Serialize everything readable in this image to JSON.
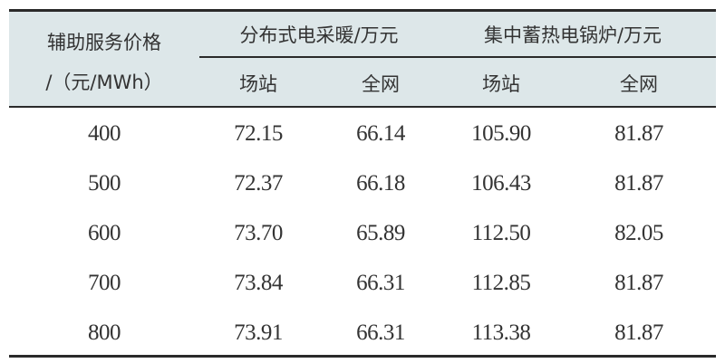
{
  "table": {
    "row_header_line1": "辅助服务价格",
    "row_header_line2": "/（元/MWh）",
    "groups": [
      {
        "label": "分布式电采暖/万元",
        "subcolumns": [
          "场站",
          "全网"
        ]
      },
      {
        "label": "集中蓄热电锅炉/万元",
        "subcolumns": [
          "场站",
          "全网"
        ]
      }
    ],
    "rows": [
      [
        "400",
        "72.15",
        "66.14",
        "105.90",
        "81.87"
      ],
      [
        "500",
        "72.37",
        "66.18",
        "106.43",
        "81.87"
      ],
      [
        "600",
        "73.70",
        "65.89",
        "112.50",
        "82.05"
      ],
      [
        "700",
        "73.84",
        "66.31",
        "112.85",
        "81.87"
      ],
      [
        "800",
        "73.91",
        "66.31",
        "113.38",
        "81.87"
      ]
    ],
    "colors": {
      "header_background": "#dde7e9",
      "rule": "#2a2a2a"
    }
  }
}
